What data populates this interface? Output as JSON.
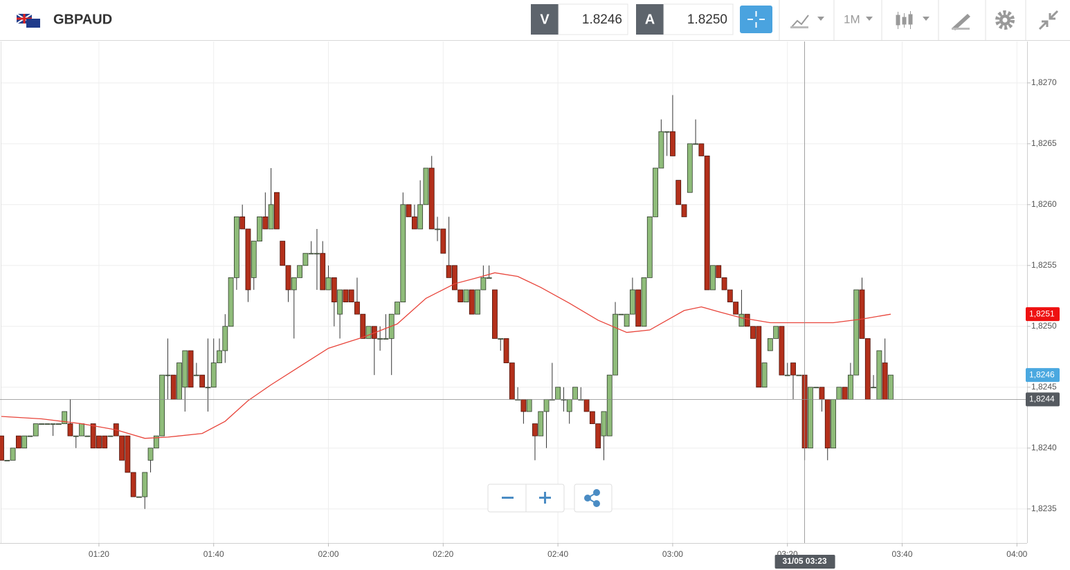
{
  "header": {
    "symbol": "GBPAUD",
    "sell_label": "V",
    "sell_price": "1.8246",
    "buy_label": "A",
    "buy_price": "1.8250",
    "interval": "1M"
  },
  "chart_data": {
    "type": "candlestick",
    "x": [
      "01:03",
      "01:04",
      "01:05",
      "01:06",
      "01:07",
      "01:08",
      "01:09",
      "01:10",
      "01:11",
      "01:12",
      "01:13",
      "01:14",
      "01:15",
      "01:16",
      "01:17",
      "01:18",
      "01:19",
      "01:20",
      "01:21",
      "01:22",
      "01:23",
      "01:24",
      "01:25",
      "01:26",
      "01:27",
      "01:28",
      "01:29",
      "01:30",
      "01:31",
      "01:32",
      "01:33",
      "01:34",
      "01:35",
      "01:36",
      "01:37",
      "01:38",
      "01:39",
      "01:40",
      "01:41",
      "01:42",
      "01:43",
      "01:44",
      "01:45",
      "01:46",
      "01:47",
      "01:48",
      "01:49",
      "01:50",
      "01:51",
      "01:52",
      "01:53",
      "01:54",
      "01:55",
      "01:56",
      "01:57",
      "01:58",
      "01:59",
      "02:00",
      "02:01",
      "02:02",
      "02:03",
      "02:04",
      "02:05",
      "02:06",
      "02:07",
      "02:08",
      "02:09",
      "02:10",
      "02:11",
      "02:12",
      "02:13",
      "02:14",
      "02:15",
      "02:16",
      "02:17",
      "02:18",
      "02:19",
      "02:20",
      "02:21",
      "02:22",
      "02:23",
      "02:24",
      "02:25",
      "02:26",
      "02:27",
      "02:28",
      "02:29",
      "02:30",
      "02:31",
      "02:32",
      "02:33",
      "02:34",
      "02:35",
      "02:36",
      "02:37",
      "02:38",
      "02:39",
      "02:40",
      "02:41",
      "02:42",
      "02:43",
      "02:44",
      "02:45",
      "02:46",
      "02:47",
      "02:48",
      "02:49",
      "02:50",
      "02:51",
      "02:52",
      "02:53",
      "02:54",
      "02:55",
      "02:56",
      "02:57",
      "02:58",
      "02:59",
      "03:00",
      "03:01",
      "03:02",
      "03:03",
      "03:04",
      "03:05",
      "03:06",
      "03:07",
      "03:08",
      "03:09",
      "03:10",
      "03:11",
      "03:12",
      "03:13",
      "03:14",
      "03:15",
      "03:16",
      "03:17",
      "03:18",
      "03:19",
      "03:20",
      "03:21",
      "03:22",
      "03:23",
      "03:24",
      "03:25",
      "03:26",
      "03:27",
      "03:28",
      "03:29",
      "03:30",
      "03:31",
      "03:32",
      "03:33",
      "03:34",
      "03:35",
      "03:36",
      "03:37",
      "03:38"
    ],
    "open": [
      1.8241,
      1.8239,
      1.8239,
      1.8241,
      1.824,
      1.8241,
      1.8241,
      1.8242,
      1.8242,
      1.8242,
      1.8242,
      1.8242,
      1.8242,
      1.8241,
      1.8241,
      1.8241,
      1.8242,
      1.8241,
      1.8241,
      1.8241,
      1.8242,
      1.8241,
      1.8241,
      1.8238,
      1.8236,
      1.8236,
      1.8239,
      1.824,
      1.8241,
      1.8246,
      1.8246,
      1.8244,
      1.8245,
      1.8248,
      1.8246,
      1.8246,
      1.8245,
      1.8245,
      1.8247,
      1.8248,
      1.825,
      1.8254,
      1.8259,
      1.8258,
      1.8254,
      1.8257,
      1.8259,
      1.8258,
      1.8261,
      1.8257,
      1.8255,
      1.8253,
      1.8254,
      1.8255,
      1.8256,
      1.8256,
      1.8256,
      1.8253,
      1.8254,
      1.8251,
      1.8253,
      1.8253,
      1.8252,
      1.8251,
      1.8249,
      1.825,
      1.8249,
      1.8249,
      1.8249,
      1.8251,
      1.8252,
      1.826,
      1.8259,
      1.8258,
      1.826,
      1.8263,
      1.8258,
      1.8258,
      1.8255,
      1.8255,
      1.8253,
      1.8252,
      1.8253,
      1.8251,
      1.8253,
      1.8254,
      1.8253,
      1.8249,
      1.8249,
      1.8247,
      1.8244,
      1.8244,
      1.8243,
      1.8242,
      1.8241,
      1.8243,
      1.8244,
      1.8244,
      1.8244,
      1.8243,
      1.8244,
      1.8244,
      1.8244,
      1.8243,
      1.8242,
      1.8241,
      1.8241,
      1.8246,
      1.8251,
      1.825,
      1.8251,
      1.8253,
      1.825,
      1.8254,
      1.8259,
      1.8263,
      1.8266,
      1.8266,
      1.8262,
      1.826,
      1.8261,
      1.8265,
      1.8265,
      1.8264,
      1.8253,
      1.8255,
      1.8254,
      1.8253,
      1.8252,
      1.825,
      1.8251,
      1.825,
      1.825,
      1.8245,
      1.8248,
      1.8249,
      1.825,
      1.8246,
      1.8247,
      1.8246,
      1.8246,
      1.824,
      1.8245,
      1.8245,
      1.8244,
      1.824,
      1.8244,
      1.8245,
      1.8244,
      1.8246,
      1.8253,
      1.8249,
      1.8245,
      1.8244,
      1.8247,
      1.8244
    ],
    "high": [
      1.8241,
      1.8239,
      1.824,
      1.8241,
      1.8241,
      1.8241,
      1.8242,
      1.8242,
      1.8242,
      1.8242,
      1.8242,
      1.8243,
      1.8244,
      1.8241,
      1.8242,
      1.8241,
      1.8242,
      1.8241,
      1.8241,
      1.8241,
      1.8242,
      1.8241,
      1.8241,
      1.8238,
      1.8236,
      1.8238,
      1.824,
      1.8241,
      1.8246,
      1.8249,
      1.8246,
      1.8247,
      1.8248,
      1.8248,
      1.8247,
      1.8246,
      1.8249,
      1.8249,
      1.8249,
      1.8251,
      1.8254,
      1.8259,
      1.826,
      1.8258,
      1.8257,
      1.8259,
      1.8261,
      1.8263,
      1.8261,
      1.8257,
      1.8255,
      1.8254,
      1.8255,
      1.8256,
      1.8257,
      1.8258,
      1.8257,
      1.8255,
      1.8254,
      1.8253,
      1.8253,
      1.8253,
      1.8254,
      1.8251,
      1.825,
      1.825,
      1.825,
      1.8251,
      1.8251,
      1.8252,
      1.8261,
      1.826,
      1.826,
      1.8262,
      1.8263,
      1.8264,
      1.8259,
      1.8258,
      1.8259,
      1.8255,
      1.8253,
      1.8253,
      1.8253,
      1.8253,
      1.8255,
      1.8255,
      1.8253,
      1.8249,
      1.8249,
      1.8247,
      1.8245,
      1.8244,
      1.8244,
      1.8242,
      1.8243,
      1.8244,
      1.8247,
      1.8245,
      1.8245,
      1.8244,
      1.8245,
      1.8245,
      1.8244,
      1.8243,
      1.8242,
      1.8243,
      1.8246,
      1.8252,
      1.8251,
      1.8251,
      1.8254,
      1.8253,
      1.8254,
      1.8259,
      1.8263,
      1.8267,
      1.8266,
      1.8269,
      1.8262,
      1.826,
      1.8265,
      1.8267,
      1.8265,
      1.8264,
      1.8255,
      1.8255,
      1.8254,
      1.8253,
      1.8252,
      1.8253,
      1.8251,
      1.825,
      1.825,
      1.8247,
      1.8249,
      1.825,
      1.825,
      1.8247,
      1.8247,
      1.8246,
      1.8246,
      1.8245,
      1.8245,
      1.8245,
      1.8244,
      1.8244,
      1.8245,
      1.8245,
      1.8247,
      1.8253,
      1.8254,
      1.8249,
      1.8246,
      1.8248,
      1.8249,
      1.8246
    ],
    "low": [
      1.8239,
      1.8239,
      1.8239,
      1.824,
      1.824,
      1.8241,
      1.8241,
      1.8242,
      1.8242,
      1.8241,
      1.8242,
      1.8242,
      1.8241,
      1.824,
      1.8241,
      1.8241,
      1.824,
      1.824,
      1.824,
      1.8241,
      1.8241,
      1.8239,
      1.8238,
      1.8236,
      1.8236,
      1.8235,
      1.8238,
      1.824,
      1.8241,
      1.8244,
      1.8244,
      1.8244,
      1.8243,
      1.8245,
      1.8246,
      1.8245,
      1.8243,
      1.8245,
      1.8247,
      1.8247,
      1.825,
      1.8253,
      1.8258,
      1.8252,
      1.8253,
      1.8257,
      1.8258,
      1.8258,
      1.8258,
      1.8255,
      1.8252,
      1.8249,
      1.8254,
      1.8255,
      1.8256,
      1.8253,
      1.8253,
      1.8253,
      1.825,
      1.8249,
      1.8252,
      1.8252,
      1.8251,
      1.8249,
      1.8249,
      1.8246,
      1.8248,
      1.8249,
      1.8246,
      1.8251,
      1.8252,
      1.8259,
      1.8258,
      1.8258,
      1.826,
      1.8258,
      1.8257,
      1.8256,
      1.8254,
      1.8253,
      1.8252,
      1.8252,
      1.8251,
      1.8251,
      1.8253,
      1.8254,
      1.8249,
      1.8248,
      1.8247,
      1.8244,
      1.8244,
      1.8242,
      1.8243,
      1.8239,
      1.8241,
      1.824,
      1.8244,
      1.8244,
      1.8243,
      1.8242,
      1.8244,
      1.8244,
      1.8243,
      1.8242,
      1.824,
      1.8239,
      1.8241,
      1.8246,
      1.8251,
      1.825,
      1.8251,
      1.825,
      1.825,
      1.8254,
      1.8259,
      1.8263,
      1.8264,
      1.8264,
      1.826,
      1.8259,
      1.8261,
      1.8265,
      1.8264,
      1.8253,
      1.8253,
      1.8254,
      1.8253,
      1.8252,
      1.8251,
      1.825,
      1.825,
      1.8249,
      1.8245,
      1.8245,
      1.8248,
      1.8249,
      1.8246,
      1.8246,
      1.8244,
      1.8246,
      1.8239,
      1.824,
      1.8245,
      1.8243,
      1.8239,
      1.824,
      1.8244,
      1.8244,
      1.8244,
      1.8246,
      1.8249,
      1.8244,
      1.8245,
      1.8244,
      1.8244,
      1.8244
    ],
    "close": [
      1.8239,
      1.8239,
      1.824,
      1.824,
      1.8241,
      1.8241,
      1.8242,
      1.8242,
      1.8242,
      1.8242,
      1.8242,
      1.8243,
      1.8241,
      1.8241,
      1.8242,
      1.8241,
      1.824,
      1.824,
      1.824,
      1.8241,
      1.8241,
      1.8239,
      1.8238,
      1.8236,
      1.8236,
      1.8238,
      1.824,
      1.8241,
      1.8246,
      1.8246,
      1.8244,
      1.8247,
      1.8248,
      1.8245,
      1.8246,
      1.8245,
      1.8245,
      1.8247,
      1.8248,
      1.825,
      1.8254,
      1.8259,
      1.8258,
      1.8253,
      1.8257,
      1.8259,
      1.8258,
      1.826,
      1.8258,
      1.8255,
      1.8253,
      1.8254,
      1.8255,
      1.8256,
      1.8256,
      1.8256,
      1.8253,
      1.8254,
      1.8252,
      1.8253,
      1.8252,
      1.8252,
      1.8251,
      1.8249,
      1.825,
      1.8249,
      1.8249,
      1.8249,
      1.8251,
      1.8252,
      1.826,
      1.8259,
      1.8258,
      1.826,
      1.8263,
      1.8258,
      1.8258,
      1.8256,
      1.8254,
      1.8253,
      1.8252,
      1.8253,
      1.8251,
      1.8253,
      1.8254,
      1.8254,
      1.8249,
      1.8249,
      1.8247,
      1.8244,
      1.8244,
      1.8243,
      1.8244,
      1.8241,
      1.8243,
      1.8244,
      1.8244,
      1.8245,
      1.8244,
      1.8244,
      1.8245,
      1.8244,
      1.8243,
      1.8242,
      1.824,
      1.8243,
      1.8246,
      1.8251,
      1.8251,
      1.8251,
      1.8253,
      1.825,
      1.8254,
      1.8259,
      1.8263,
      1.8266,
      1.8266,
      1.8264,
      1.826,
      1.8259,
      1.8265,
      1.8265,
      1.8264,
      1.8253,
      1.8255,
      1.8254,
      1.8253,
      1.8252,
      1.8251,
      1.8251,
      1.825,
      1.8249,
      1.8245,
      1.8247,
      1.8249,
      1.825,
      1.8246,
      1.8246,
      1.8246,
      1.8246,
      1.824,
      1.8245,
      1.8245,
      1.8244,
      1.824,
      1.8244,
      1.8245,
      1.8244,
      1.8246,
      1.8253,
      1.8249,
      1.8244,
      1.8245,
      1.8248,
      1.8244,
      1.8246
    ],
    "up_color": "#8fbc7a",
    "down_color": "#b3301b",
    "xlim": [
      "01:03",
      "04:02"
    ],
    "xticks": [
      "01:20",
      "01:40",
      "02:00",
      "02:20",
      "02:40",
      "03:00",
      "03:20",
      "03:40",
      "04:00"
    ],
    "ylim": [
      1.82322,
      1.82734
    ],
    "yticks": [
      {
        "value": 1.8235,
        "label": "1,8235"
      },
      {
        "value": 1.824,
        "label": "1,8240"
      },
      {
        "value": 1.8245,
        "label": "1,8245"
      },
      {
        "value": 1.825,
        "label": "1,8250"
      },
      {
        "value": 1.8255,
        "label": "1,8255"
      },
      {
        "value": 1.826,
        "label": "1,8260"
      },
      {
        "value": 1.8265,
        "label": "1,8265"
      },
      {
        "value": 1.827,
        "label": "1,8270"
      }
    ],
    "grid": true,
    "ma": {
      "color": "#e8443a",
      "x": [
        "01:03",
        "01:10",
        "01:17",
        "01:23",
        "01:28",
        "01:32",
        "01:38",
        "01:42",
        "01:46",
        "01:50",
        "01:55",
        "02:00",
        "02:06",
        "02:12",
        "02:17",
        "02:22",
        "02:26",
        "02:29",
        "02:33",
        "02:37",
        "02:42",
        "02:47",
        "02:52",
        "02:56",
        "02:59",
        "03:02",
        "03:05",
        "03:08",
        "03:12",
        "03:17",
        "03:22",
        "03:28",
        "03:33",
        "03:38"
      ],
      "values": [
        1.82426,
        1.82424,
        1.8242,
        1.82415,
        1.82408,
        1.82409,
        1.82412,
        1.82422,
        1.82439,
        1.82452,
        1.82467,
        1.82482,
        1.82491,
        1.82502,
        1.82523,
        1.82535,
        1.8254,
        1.82544,
        1.82541,
        1.82532,
        1.82519,
        1.82505,
        1.82495,
        1.82497,
        1.82505,
        1.82513,
        1.82516,
        1.82512,
        1.82507,
        1.82503,
        1.82503,
        1.82503,
        1.82506,
        1.8251
      ]
    },
    "price_tags": [
      {
        "value": 1.8251,
        "label": "1,8251",
        "color": "#ee1111"
      },
      {
        "value": 1.8246,
        "label": "1,8246",
        "color": "#4aa8e0"
      }
    ],
    "crosshair": {
      "x_label": "31/05 03:23",
      "y": {
        "value": 1.8244,
        "label": "1,8244"
      },
      "color": "#555a60"
    }
  }
}
